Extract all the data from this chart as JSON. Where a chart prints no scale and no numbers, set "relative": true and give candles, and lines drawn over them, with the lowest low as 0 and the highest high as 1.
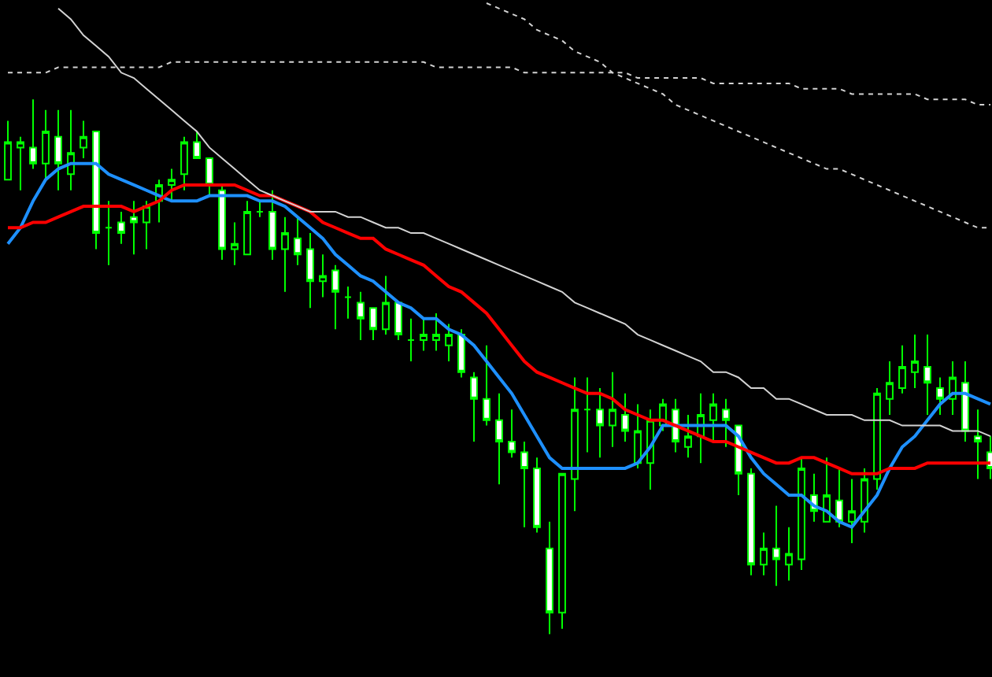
{
  "chart_data": {
    "type": "candlestick",
    "relative": true,
    "color": "#00ff00",
    "categories": [
      null,
      null,
      null,
      null,
      null,
      null,
      null,
      null,
      null,
      null,
      null,
      null,
      null,
      null,
      null,
      null,
      null,
      null,
      null,
      null,
      null,
      null,
      null,
      null,
      null,
      null,
      null,
      null,
      null,
      null,
      null,
      null,
      null,
      null,
      null,
      null,
      null,
      null,
      null,
      null,
      null,
      null,
      null,
      null,
      null,
      null,
      null,
      null,
      null,
      null,
      null,
      null,
      null,
      null,
      null,
      null,
      null,
      null,
      null,
      null,
      null,
      null,
      null,
      null,
      null,
      null,
      null,
      null,
      null,
      null,
      null,
      null,
      null,
      null,
      null,
      null,
      null,
      null,
      null
    ],
    "ohlc": [
      [
        0.85,
        0.96,
        0.85,
        0.92
      ],
      [
        0.91,
        0.93,
        0.83,
        0.92
      ],
      [
        0.91,
        1,
        0.87,
        0.88
      ],
      [
        0.88,
        0.98,
        0.85,
        0.94
      ],
      [
        0.93,
        0.98,
        0.83,
        0.88
      ],
      [
        0.86,
        0.98,
        0.83,
        0.9
      ],
      [
        0.91,
        0.96,
        0.89,
        0.93
      ],
      [
        0.94,
        0.94,
        0.72,
        0.75
      ],
      [
        0.76,
        0.81,
        0.69,
        0.76
      ],
      [
        0.77,
        0.79,
        0.73,
        0.75
      ],
      [
        0.78,
        0.81,
        0.71,
        0.77
      ],
      [
        0.77,
        0.81,
        0.72,
        0.8
      ],
      [
        0.81,
        0.85,
        0.77,
        0.84
      ],
      [
        0.84,
        0.87,
        0.81,
        0.85
      ],
      [
        0.86,
        0.93,
        0.83,
        0.92
      ],
      [
        0.92,
        0.94,
        0.89,
        0.89
      ],
      [
        0.89,
        0.89,
        0.82,
        0.84
      ],
      [
        0.83,
        0.84,
        0.7,
        0.72
      ],
      [
        0.72,
        0.77,
        0.69,
        0.73
      ],
      [
        0.71,
        0.81,
        0.71,
        0.79
      ],
      [
        0.79,
        0.81,
        0.78,
        0.79
      ],
      [
        0.79,
        0.83,
        0.7,
        0.72
      ],
      [
        0.72,
        0.78,
        0.64,
        0.75
      ],
      [
        0.74,
        0.78,
        0.69,
        0.71
      ],
      [
        0.72,
        0.75,
        0.61,
        0.66
      ],
      [
        0.66,
        0.71,
        0.63,
        0.67
      ],
      [
        0.68,
        0.69,
        0.57,
        0.64
      ],
      [
        0.63,
        0.65,
        0.59,
        0.63
      ],
      [
        0.62,
        0.64,
        0.55,
        0.59
      ],
      [
        0.61,
        0.61,
        0.55,
        0.57
      ],
      [
        0.57,
        0.67,
        0.56,
        0.62
      ],
      [
        0.62,
        0.62,
        0.55,
        0.56
      ],
      [
        0.55,
        0.59,
        0.51,
        0.55
      ],
      [
        0.55,
        0.59,
        0.53,
        0.56
      ],
      [
        0.55,
        0.6,
        0.53,
        0.56
      ],
      [
        0.54,
        0.58,
        0.51,
        0.56
      ],
      [
        0.56,
        0.57,
        0.48,
        0.49
      ],
      [
        0.48,
        0.49,
        0.36,
        0.44
      ],
      [
        0.44,
        0.54,
        0.39,
        0.4
      ],
      [
        0.4,
        0.45,
        0.28,
        0.36
      ],
      [
        0.36,
        0.42,
        0.33,
        0.34
      ],
      [
        0.34,
        0.36,
        0.2,
        0.31
      ],
      [
        0.31,
        0.33,
        0.19,
        0.2
      ],
      [
        0.16,
        0.21,
        0,
        0.04
      ],
      [
        0.04,
        0.3,
        0.01,
        0.3
      ],
      [
        0.29,
        0.48,
        0.23,
        0.42
      ],
      [
        0.42,
        0.48,
        0.34,
        0.42
      ],
      [
        0.42,
        0.46,
        0.33,
        0.39
      ],
      [
        0.39,
        0.49,
        0.35,
        0.42
      ],
      [
        0.41,
        0.45,
        0.36,
        0.38
      ],
      [
        0.32,
        0.43,
        0.31,
        0.38
      ],
      [
        0.32,
        0.42,
        0.27,
        0.4
      ],
      [
        0.39,
        0.44,
        0.38,
        0.43
      ],
      [
        0.42,
        0.44,
        0.34,
        0.36
      ],
      [
        0.35,
        0.41,
        0.33,
        0.37
      ],
      [
        0.37,
        0.45,
        0.32,
        0.41
      ],
      [
        0.4,
        0.45,
        0.36,
        0.43
      ],
      [
        0.42,
        0.44,
        0.35,
        0.4
      ],
      [
        0.39,
        0.39,
        0.26,
        0.3
      ],
      [
        0.3,
        0.31,
        0.11,
        0.13
      ],
      [
        0.13,
        0.19,
        0.11,
        0.16
      ],
      [
        0.16,
        0.24,
        0.09,
        0.14
      ],
      [
        0.13,
        0.2,
        0.1,
        0.15
      ],
      [
        0.14,
        0.33,
        0.12,
        0.31
      ],
      [
        0.26,
        0.3,
        0.21,
        0.23
      ],
      [
        0.21,
        0.33,
        0.21,
        0.26
      ],
      [
        0.25,
        0.31,
        0.2,
        0.21
      ],
      [
        0.21,
        0.29,
        0.17,
        0.23
      ],
      [
        0.21,
        0.31,
        0.19,
        0.29
      ],
      [
        0.29,
        0.46,
        0.27,
        0.45
      ],
      [
        0.44,
        0.51,
        0.41,
        0.47
      ],
      [
        0.46,
        0.54,
        0.45,
        0.5
      ],
      [
        0.49,
        0.56,
        0.46,
        0.51
      ],
      [
        0.5,
        0.56,
        0.41,
        0.47
      ],
      [
        0.46,
        0.48,
        0.41,
        0.44
      ],
      [
        0.44,
        0.51,
        0.41,
        0.48
      ],
      [
        0.47,
        0.51,
        0.36,
        0.38
      ],
      [
        0.37,
        0.42,
        0.29,
        0.36
      ],
      [
        0.34,
        0.37,
        0.29,
        0.31
      ]
    ],
    "series": [
      {
        "type": "line",
        "color": "#1e90ff",
        "values": [
          0.73,
          0.76,
          0.81,
          0.85,
          0.87,
          0.88,
          0.88,
          0.88,
          0.86,
          0.85,
          0.84,
          0.83,
          0.82,
          0.81,
          0.81,
          0.81,
          0.82,
          0.82,
          0.82,
          0.82,
          0.81,
          0.81,
          0.8,
          0.78,
          0.76,
          0.74,
          0.71,
          0.69,
          0.67,
          0.66,
          0.64,
          0.62,
          0.61,
          0.59,
          0.59,
          0.57,
          0.56,
          0.54,
          0.51,
          0.48,
          0.45,
          0.41,
          0.37,
          0.33,
          0.31,
          0.31,
          0.31,
          0.31,
          0.31,
          0.31,
          0.32,
          0.35,
          0.39,
          0.39,
          0.39,
          0.39,
          0.39,
          0.39,
          0.37,
          0.33,
          0.3,
          0.28,
          0.26,
          0.26,
          0.24,
          0.23,
          0.21,
          0.2,
          0.23,
          0.26,
          0.31,
          0.35,
          0.37,
          0.4,
          0.43,
          0.45,
          0.45,
          0.44,
          0.43
        ]
      },
      {
        "type": "line",
        "color": "#ff0000",
        "values": [
          0.76,
          0.76,
          0.77,
          0.77,
          0.78,
          0.79,
          0.8,
          0.8,
          0.8,
          0.8,
          0.79,
          0.8,
          0.81,
          0.83,
          0.84,
          0.84,
          0.84,
          0.84,
          0.84,
          0.83,
          0.82,
          0.82,
          0.81,
          0.8,
          0.79,
          0.77,
          0.76,
          0.75,
          0.74,
          0.74,
          0.72,
          0.71,
          0.7,
          0.69,
          0.67,
          0.65,
          0.64,
          0.62,
          0.6,
          0.57,
          0.54,
          0.51,
          0.49,
          0.48,
          0.47,
          0.46,
          0.45,
          0.45,
          0.44,
          0.42,
          0.41,
          0.4,
          0.4,
          0.39,
          0.38,
          0.37,
          0.36,
          0.36,
          0.35,
          0.34,
          0.33,
          0.32,
          0.32,
          0.33,
          0.33,
          0.32,
          0.31,
          0.3,
          0.3,
          0.3,
          0.31,
          0.31,
          0.31,
          0.32,
          0.32,
          0.32,
          0.32,
          0.32,
          0.32
        ]
      },
      {
        "type": "line",
        "color": "#d3d3d3",
        "values": [
          null,
          null,
          null,
          null,
          1.17,
          1.15,
          1.12,
          1.1,
          1.08,
          1.05,
          1.04,
          1.02,
          1.0,
          0.98,
          0.96,
          0.94,
          0.91,
          0.89,
          0.87,
          0.85,
          0.83,
          0.82,
          0.81,
          0.8,
          0.79,
          0.79,
          0.79,
          0.78,
          0.78,
          0.77,
          0.76,
          0.76,
          0.75,
          0.75,
          0.74,
          0.73,
          0.72,
          0.71,
          0.7,
          0.69,
          0.68,
          0.67,
          0.66,
          0.65,
          0.64,
          0.62,
          0.61,
          0.6,
          0.59,
          0.58,
          0.56,
          0.55,
          0.54,
          0.53,
          0.52,
          0.51,
          0.49,
          0.49,
          0.48,
          0.46,
          0.46,
          0.44,
          0.44,
          0.43,
          0.42,
          0.41,
          0.41,
          0.41,
          0.4,
          0.4,
          0.4,
          0.39,
          0.39,
          0.39,
          0.39,
          0.38,
          0.38,
          0.38,
          0.37
        ]
      },
      {
        "type": "line",
        "color": "#d3d3d3",
        "line_style": "dotted",
        "values": [
          1.05,
          1.05,
          1.05,
          1.05,
          1.06,
          1.06,
          1.06,
          1.06,
          1.06,
          1.06,
          1.06,
          1.06,
          1.06,
          1.07,
          1.07,
          1.07,
          1.07,
          1.07,
          1.07,
          1.07,
          1.07,
          1.07,
          1.07,
          1.07,
          1.07,
          1.07,
          1.07,
          1.07,
          1.07,
          1.07,
          1.07,
          1.07,
          1.07,
          1.07,
          1.06,
          1.06,
          1.06,
          1.06,
          1.06,
          1.06,
          1.06,
          1.05,
          1.05,
          1.05,
          1.05,
          1.05,
          1.05,
          1.05,
          1.05,
          1.05,
          1.04,
          1.04,
          1.04,
          1.04,
          1.04,
          1.04,
          1.03,
          1.03,
          1.03,
          1.03,
          1.03,
          1.03,
          1.03,
          1.02,
          1.02,
          1.02,
          1.02,
          1.01,
          1.01,
          1.01,
          1.01,
          1.01,
          1.01,
          1.0,
          1.0,
          1.0,
          1.0,
          0.99,
          0.99
        ]
      },
      {
        "type": "line",
        "color": "#d3d3d3",
        "line_style": "dotted",
        "values": [
          null,
          null,
          null,
          null,
          null,
          null,
          null,
          null,
          null,
          null,
          null,
          null,
          null,
          null,
          null,
          null,
          null,
          null,
          null,
          null,
          null,
          null,
          null,
          null,
          null,
          null,
          null,
          null,
          null,
          null,
          null,
          null,
          null,
          null,
          null,
          null,
          null,
          null,
          1.18,
          1.17,
          1.16,
          1.15,
          1.13,
          1.12,
          1.11,
          1.09,
          1.08,
          1.07,
          1.05,
          1.04,
          1.03,
          1.02,
          1.01,
          0.99,
          0.98,
          0.97,
          0.96,
          0.95,
          0.94,
          0.93,
          0.92,
          0.91,
          0.9,
          0.89,
          0.88,
          0.87,
          0.87,
          0.86,
          0.85,
          0.84,
          0.83,
          0.82,
          0.81,
          0.8,
          0.79,
          0.78,
          0.77,
          0.76,
          0.76
        ]
      }
    ]
  }
}
